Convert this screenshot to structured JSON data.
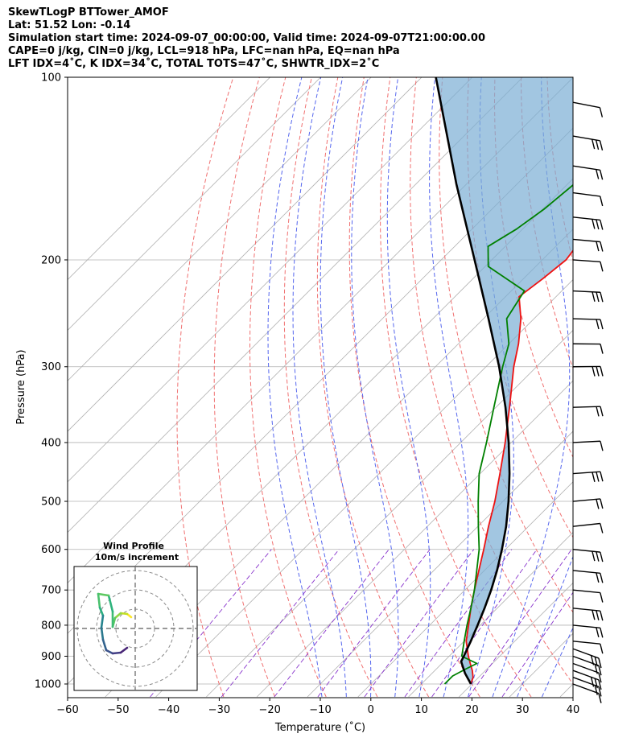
{
  "header": {
    "line1": "SkewTLogP BTTower_AMOF",
    "line2": "Lat: 51.52   Lon: -0.14",
    "line3": "Simulation start time: 2024-09-07_00:00:00, Valid time: 2024-09-07T21:00:00.00",
    "line4": "CAPE=0 j/kg, CIN=0 j/kg, LCL=918 hPa, LFC=nan hPa, EQ=nan hPa",
    "line5": "LFT IDX=4˚C, K IDX=34˚C, TOTAL TOTS=47˚C, SHWTR_IDX=2˚C"
  },
  "chart_data": {
    "type": "line",
    "xlabel": "Temperature (˚C)",
    "ylabel": "Pressure (hPa)",
    "xlim": [
      -60,
      40
    ],
    "ylim": [
      1050,
      100
    ],
    "y_scale": "log",
    "skew": "45 degrees",
    "x_ticks": [
      "−60",
      "−50",
      "−40",
      "−30",
      "−20",
      "−10",
      "0",
      "10",
      "20",
      "30",
      "40"
    ],
    "x_tick_values": [
      -60,
      -50,
      -40,
      -30,
      -20,
      -10,
      0,
      10,
      20,
      30,
      40
    ],
    "y_ticks": [
      "100",
      "200",
      "300",
      "400",
      "500",
      "600",
      "700",
      "800",
      "900",
      "1000"
    ],
    "y_tick_values": [
      100,
      200,
      300,
      400,
      500,
      600,
      700,
      800,
      900,
      1000
    ],
    "grid": true,
    "series": [
      {
        "color": "#ee1111",
        "pressure": [
          1000,
          975,
          950,
          925,
          900,
          850,
          800,
          750,
          700,
          650,
          600,
          550,
          500,
          450,
          400,
          350,
          300,
          275,
          250,
          230,
          215,
          200,
          185,
          170,
          158,
          148,
          138,
          128,
          118,
          108,
          100
        ],
        "temp": [
          19.8,
          18.9,
          17.4,
          15.6,
          13.8,
          10.4,
          7.7,
          4.8,
          1.9,
          -1.1,
          -4.3,
          -7.9,
          -11.6,
          -16.1,
          -21.2,
          -27.3,
          -34.5,
          -38.1,
          -42.6,
          -47.3,
          -46.2,
          -45.3,
          -46.3,
          -47.8,
          -49.1,
          -51.0,
          -53.3,
          -56.7,
          -60.0,
          -63.2,
          -66.6
        ]
      },
      {
        "color": "#008000",
        "pressure": [
          1000,
          970,
          945,
          925,
          900,
          850,
          800,
          750,
          700,
          650,
          600,
          550,
          500,
          450,
          400,
          350,
          300,
          275,
          250,
          225,
          205,
          190,
          178,
          165,
          150,
          130,
          100
        ],
        "temp": [
          14.6,
          14.6,
          15.8,
          16.9,
          12.5,
          10.0,
          7.4,
          4.8,
          1.9,
          -1.5,
          -5.2,
          -9.9,
          -14.9,
          -20.2,
          -24.9,
          -30.4,
          -36.7,
          -40.0,
          -45.4,
          -47.4,
          -59.4,
          -63.4,
          -61.2,
          -59.7,
          -58.7,
          -59.2,
          -68.9
        ]
      },
      {
        "color": "#000000",
        "pressure": [
          1000,
          960,
          918,
          900,
          850,
          800,
          750,
          700,
          650,
          600,
          550,
          500,
          450,
          400,
          350,
          300,
          250,
          200,
          150,
          100
        ],
        "temp": [
          19.8,
          16.5,
          13.4,
          12.9,
          11.3,
          9.5,
          7.5,
          5.2,
          2.5,
          -0.7,
          -4.4,
          -8.9,
          -14.2,
          -20.5,
          -28.1,
          -37.4,
          -49.0,
          -63.4,
          -82.0,
          -107.2
        ]
      }
    ],
    "wind_barbs_pressure": [
      1000,
      975,
      950,
      925,
      900,
      875,
      850,
      800,
      750,
      700,
      650,
      600,
      550,
      500,
      450,
      400,
      350,
      300,
      275,
      250,
      225,
      200,
      185,
      170,
      155,
      140,
      125,
      110
    ],
    "inset": {
      "title_line1": "Wind Profile",
      "title_line2": "10m/s increment"
    }
  }
}
